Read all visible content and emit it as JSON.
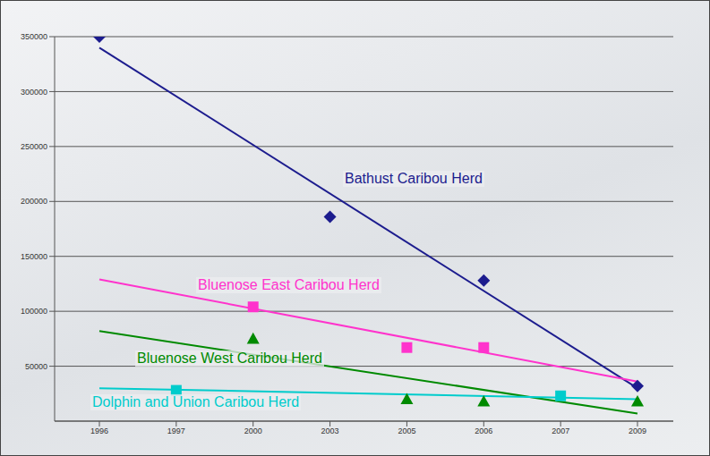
{
  "chart_data": {
    "type": "scatter",
    "categories": [
      "1996",
      "1997",
      "2000",
      "2003",
      "2005",
      "2006",
      "2007",
      "2009"
    ],
    "ylim": [
      0,
      350000
    ],
    "yticks": [
      50000,
      100000,
      150000,
      200000,
      250000,
      300000,
      350000
    ],
    "grid": true,
    "series": [
      {
        "name": "Bathust Caribou Herd",
        "color": "#1c1c8e",
        "marker": "diamond",
        "values": [
          350000,
          null,
          null,
          186000,
          null,
          128000,
          null,
          32000
        ],
        "trend": [
          340000,
          null,
          null,
          null,
          null,
          null,
          null,
          30000
        ]
      },
      {
        "name": "Bluenose East Caribou Herd",
        "color": "#ff33cc",
        "marker": "square",
        "values": [
          null,
          null,
          104000,
          null,
          67000,
          67000,
          null,
          null
        ],
        "trend": [
          129000,
          null,
          null,
          null,
          null,
          null,
          null,
          36000
        ]
      },
      {
        "name": "Bluenose West Caribou Herd",
        "color": "#008a00",
        "marker": "triangle",
        "values": [
          null,
          null,
          75000,
          null,
          20000,
          18000,
          null,
          18000
        ],
        "trend": [
          82000,
          null,
          null,
          null,
          null,
          null,
          null,
          7000
        ]
      },
      {
        "name": "Dolphin and Union Caribou Herd",
        "color": "#00cccc",
        "marker": "square",
        "values": [
          null,
          28000,
          null,
          null,
          null,
          null,
          23000,
          null
        ],
        "trend": [
          30000,
          null,
          null,
          null,
          null,
          null,
          null,
          20000
        ]
      }
    ]
  }
}
